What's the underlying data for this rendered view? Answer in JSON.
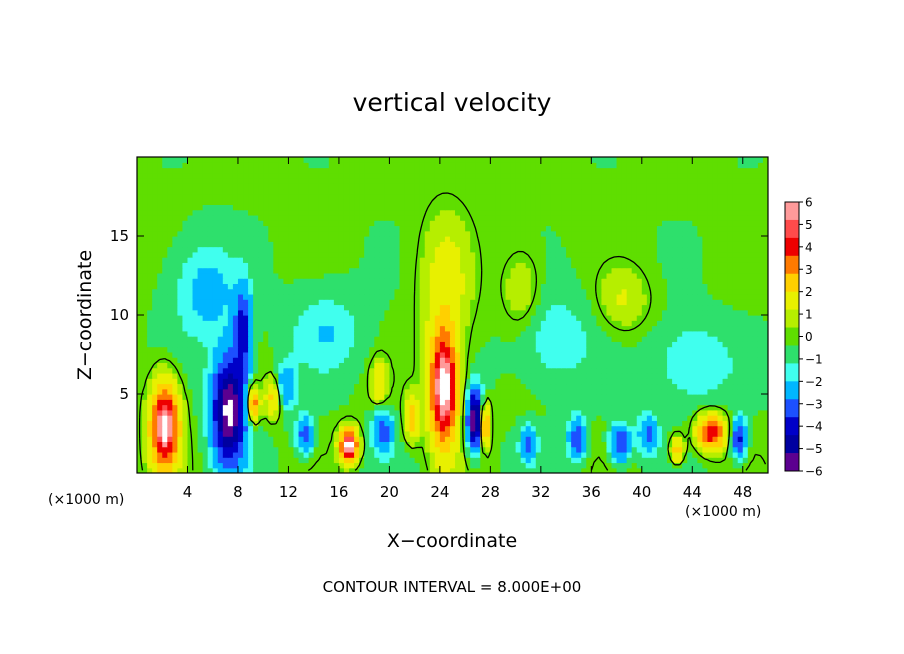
{
  "chart_data": {
    "type": "heatmap",
    "title": "vertical velocity",
    "xlabel": "X−coordinate",
    "ylabel": "Z−coordinate",
    "x_unit_left": "(×1000 m)",
    "x_unit_right": "(×1000 m)",
    "footer": "CONTOUR INTERVAL = 8.000E+00",
    "xlim": [
      0,
      50
    ],
    "ylim": [
      0,
      20
    ],
    "x_ticks": [
      "4",
      "8",
      "12",
      "16",
      "20",
      "24",
      "28",
      "32",
      "36",
      "40",
      "44",
      "48"
    ],
    "x_tick_values": [
      4,
      8,
      12,
      16,
      20,
      24,
      28,
      32,
      36,
      40,
      44,
      48
    ],
    "y_ticks": [
      "5",
      "10",
      "15"
    ],
    "y_tick_values": [
      5,
      10,
      15
    ],
    "colorbar": {
      "labels": [
        "6",
        "5",
        "4",
        "3",
        "2",
        "1",
        "0",
        "−1",
        "−2",
        "−3",
        "−4",
        "−5",
        "−6"
      ],
      "colors": [
        "#ff9a9a",
        "#ff4b4b",
        "#ee0000",
        "#ff7a00",
        "#ffd000",
        "#e8f000",
        "#b6ee00",
        "#5fde00",
        "#2ee06c",
        "#40ffee",
        "#00b7ff",
        "#1c50ff",
        "#0000c8",
        "#0000a0",
        "#5c0090"
      ]
    },
    "features": [
      {
        "kind": "updraft",
        "x": 2.2,
        "z": 3.0,
        "sx": 1.1,
        "sz": 2.6,
        "w": 6.5
      },
      {
        "kind": "downdraft",
        "x": 7.3,
        "z": 4.0,
        "sx": 1.3,
        "sz": 3.3,
        "w": -6.5
      },
      {
        "kind": "downdraft",
        "x": 8.4,
        "z": 9.0,
        "sx": 0.7,
        "sz": 2.6,
        "w": -3.5
      },
      {
        "kind": "updraft",
        "x": 9.2,
        "z": 4.4,
        "sx": 0.5,
        "sz": 1.1,
        "w": 4.0
      },
      {
        "kind": "updraft",
        "x": 16.8,
        "z": 1.8,
        "sx": 0.7,
        "sz": 1.0,
        "w": 6.5
      },
      {
        "kind": "updraft",
        "x": 24.3,
        "z": 5.4,
        "sx": 1.1,
        "sz": 3.6,
        "w": 6.7
      },
      {
        "kind": "downdraft",
        "x": 26.8,
        "z": 3.4,
        "sx": 0.6,
        "sz": 1.8,
        "w": -6.5
      },
      {
        "kind": "updraft",
        "x": 27.5,
        "z": 3.1,
        "sx": 0.4,
        "sz": 1.3,
        "w": 5.0
      },
      {
        "kind": "updraft",
        "x": 45.5,
        "z": 2.6,
        "sx": 1.1,
        "sz": 1.1,
        "w": 4.8
      },
      {
        "kind": "downdraft",
        "x": 34.9,
        "z": 2.2,
        "sx": 0.7,
        "sz": 1.3,
        "w": -3.0
      },
      {
        "kind": "downdraft",
        "x": 38.3,
        "z": 1.9,
        "sx": 0.8,
        "sz": 1.2,
        "w": -3.2
      },
      {
        "kind": "downdraft",
        "x": 47.7,
        "z": 2.2,
        "sx": 0.6,
        "sz": 1.2,
        "w": -3.5
      },
      {
        "kind": "downdraft",
        "x": 31.0,
        "z": 1.9,
        "sx": 0.6,
        "sz": 1.0,
        "w": -2.5
      },
      {
        "kind": "downdraft",
        "x": 19.5,
        "z": 2.7,
        "sx": 0.8,
        "sz": 1.3,
        "w": -2.6
      },
      {
        "kind": "downdraft",
        "x": 13.3,
        "z": 2.4,
        "sx": 0.7,
        "sz": 1.2,
        "w": -2.6
      },
      {
        "kind": "updraft",
        "x": 21.8,
        "z": 3.5,
        "sx": 0.6,
        "sz": 1.4,
        "w": 2.5
      },
      {
        "kind": "updraft",
        "x": 10.8,
        "z": 4.8,
        "sx": 0.6,
        "sz": 1.2,
        "w": 2.4
      },
      {
        "kind": "downdraft",
        "x": 11.8,
        "z": 5.5,
        "sx": 0.8,
        "sz": 1.4,
        "w": -2.0
      },
      {
        "kind": "updraft",
        "x": 19.2,
        "z": 5.8,
        "sx": 0.6,
        "sz": 1.3,
        "w": 2.0
      },
      {
        "kind": "downdraft",
        "x": 40.5,
        "z": 2.5,
        "sx": 0.8,
        "sz": 1.2,
        "w": -2.2
      },
      {
        "kind": "updraft",
        "x": 42.8,
        "z": 1.5,
        "sx": 0.5,
        "sz": 0.8,
        "w": 3.0
      },
      {
        "kind": "updraft",
        "x": 24.5,
        "z": 12.0,
        "sx": 2.0,
        "sz": 4.5,
        "w": 1.3
      },
      {
        "kind": "downdraft",
        "x": 5.5,
        "z": 11.5,
        "sx": 2.5,
        "sz": 3.0,
        "w": -1.4
      },
      {
        "kind": "downdraft",
        "x": 15.0,
        "z": 9.0,
        "sx": 3.0,
        "sz": 2.5,
        "w": -1.0
      },
      {
        "kind": "downdraft",
        "x": 33.0,
        "z": 8.5,
        "sx": 3.0,
        "sz": 3.0,
        "w": -1.0
      },
      {
        "kind": "downdraft",
        "x": 44.0,
        "z": 7.0,
        "sx": 3.0,
        "sz": 2.5,
        "w": -1.2
      },
      {
        "kind": "updraft",
        "x": 38.5,
        "z": 11.0,
        "sx": 2.0,
        "sz": 2.0,
        "w": 1.0
      },
      {
        "kind": "updraft",
        "x": 30.5,
        "z": 11.5,
        "sx": 1.5,
        "sz": 2.5,
        "w": 1.0
      }
    ]
  }
}
